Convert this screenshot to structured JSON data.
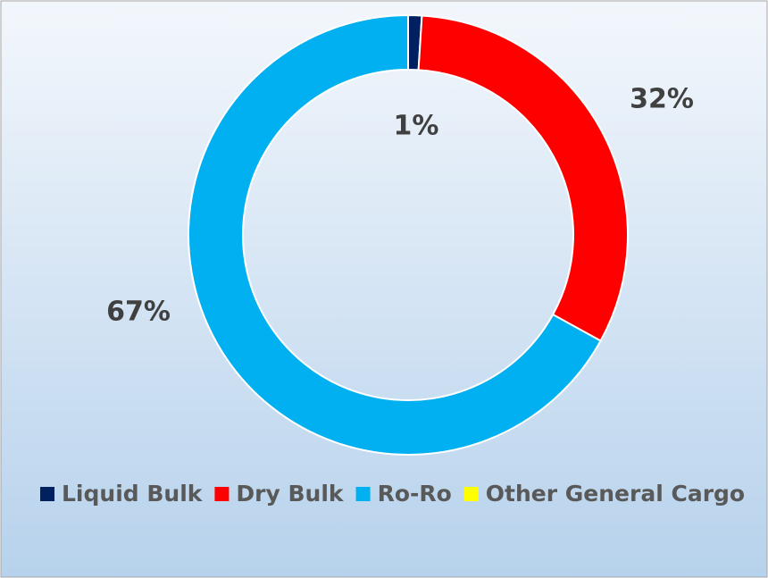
{
  "chart_data": {
    "type": "donut",
    "categories": [
      "Liquid Bulk",
      "Dry Bulk",
      "Ro-Ro",
      "Other General Cargo"
    ],
    "values": [
      1,
      32,
      67,
      0
    ],
    "value_labels": [
      "1%",
      "32%",
      "67%",
      null
    ],
    "colors": [
      "#002060",
      "#ff0000",
      "#00b0f0",
      "#ffff00"
    ],
    "legend": "bottom"
  }
}
